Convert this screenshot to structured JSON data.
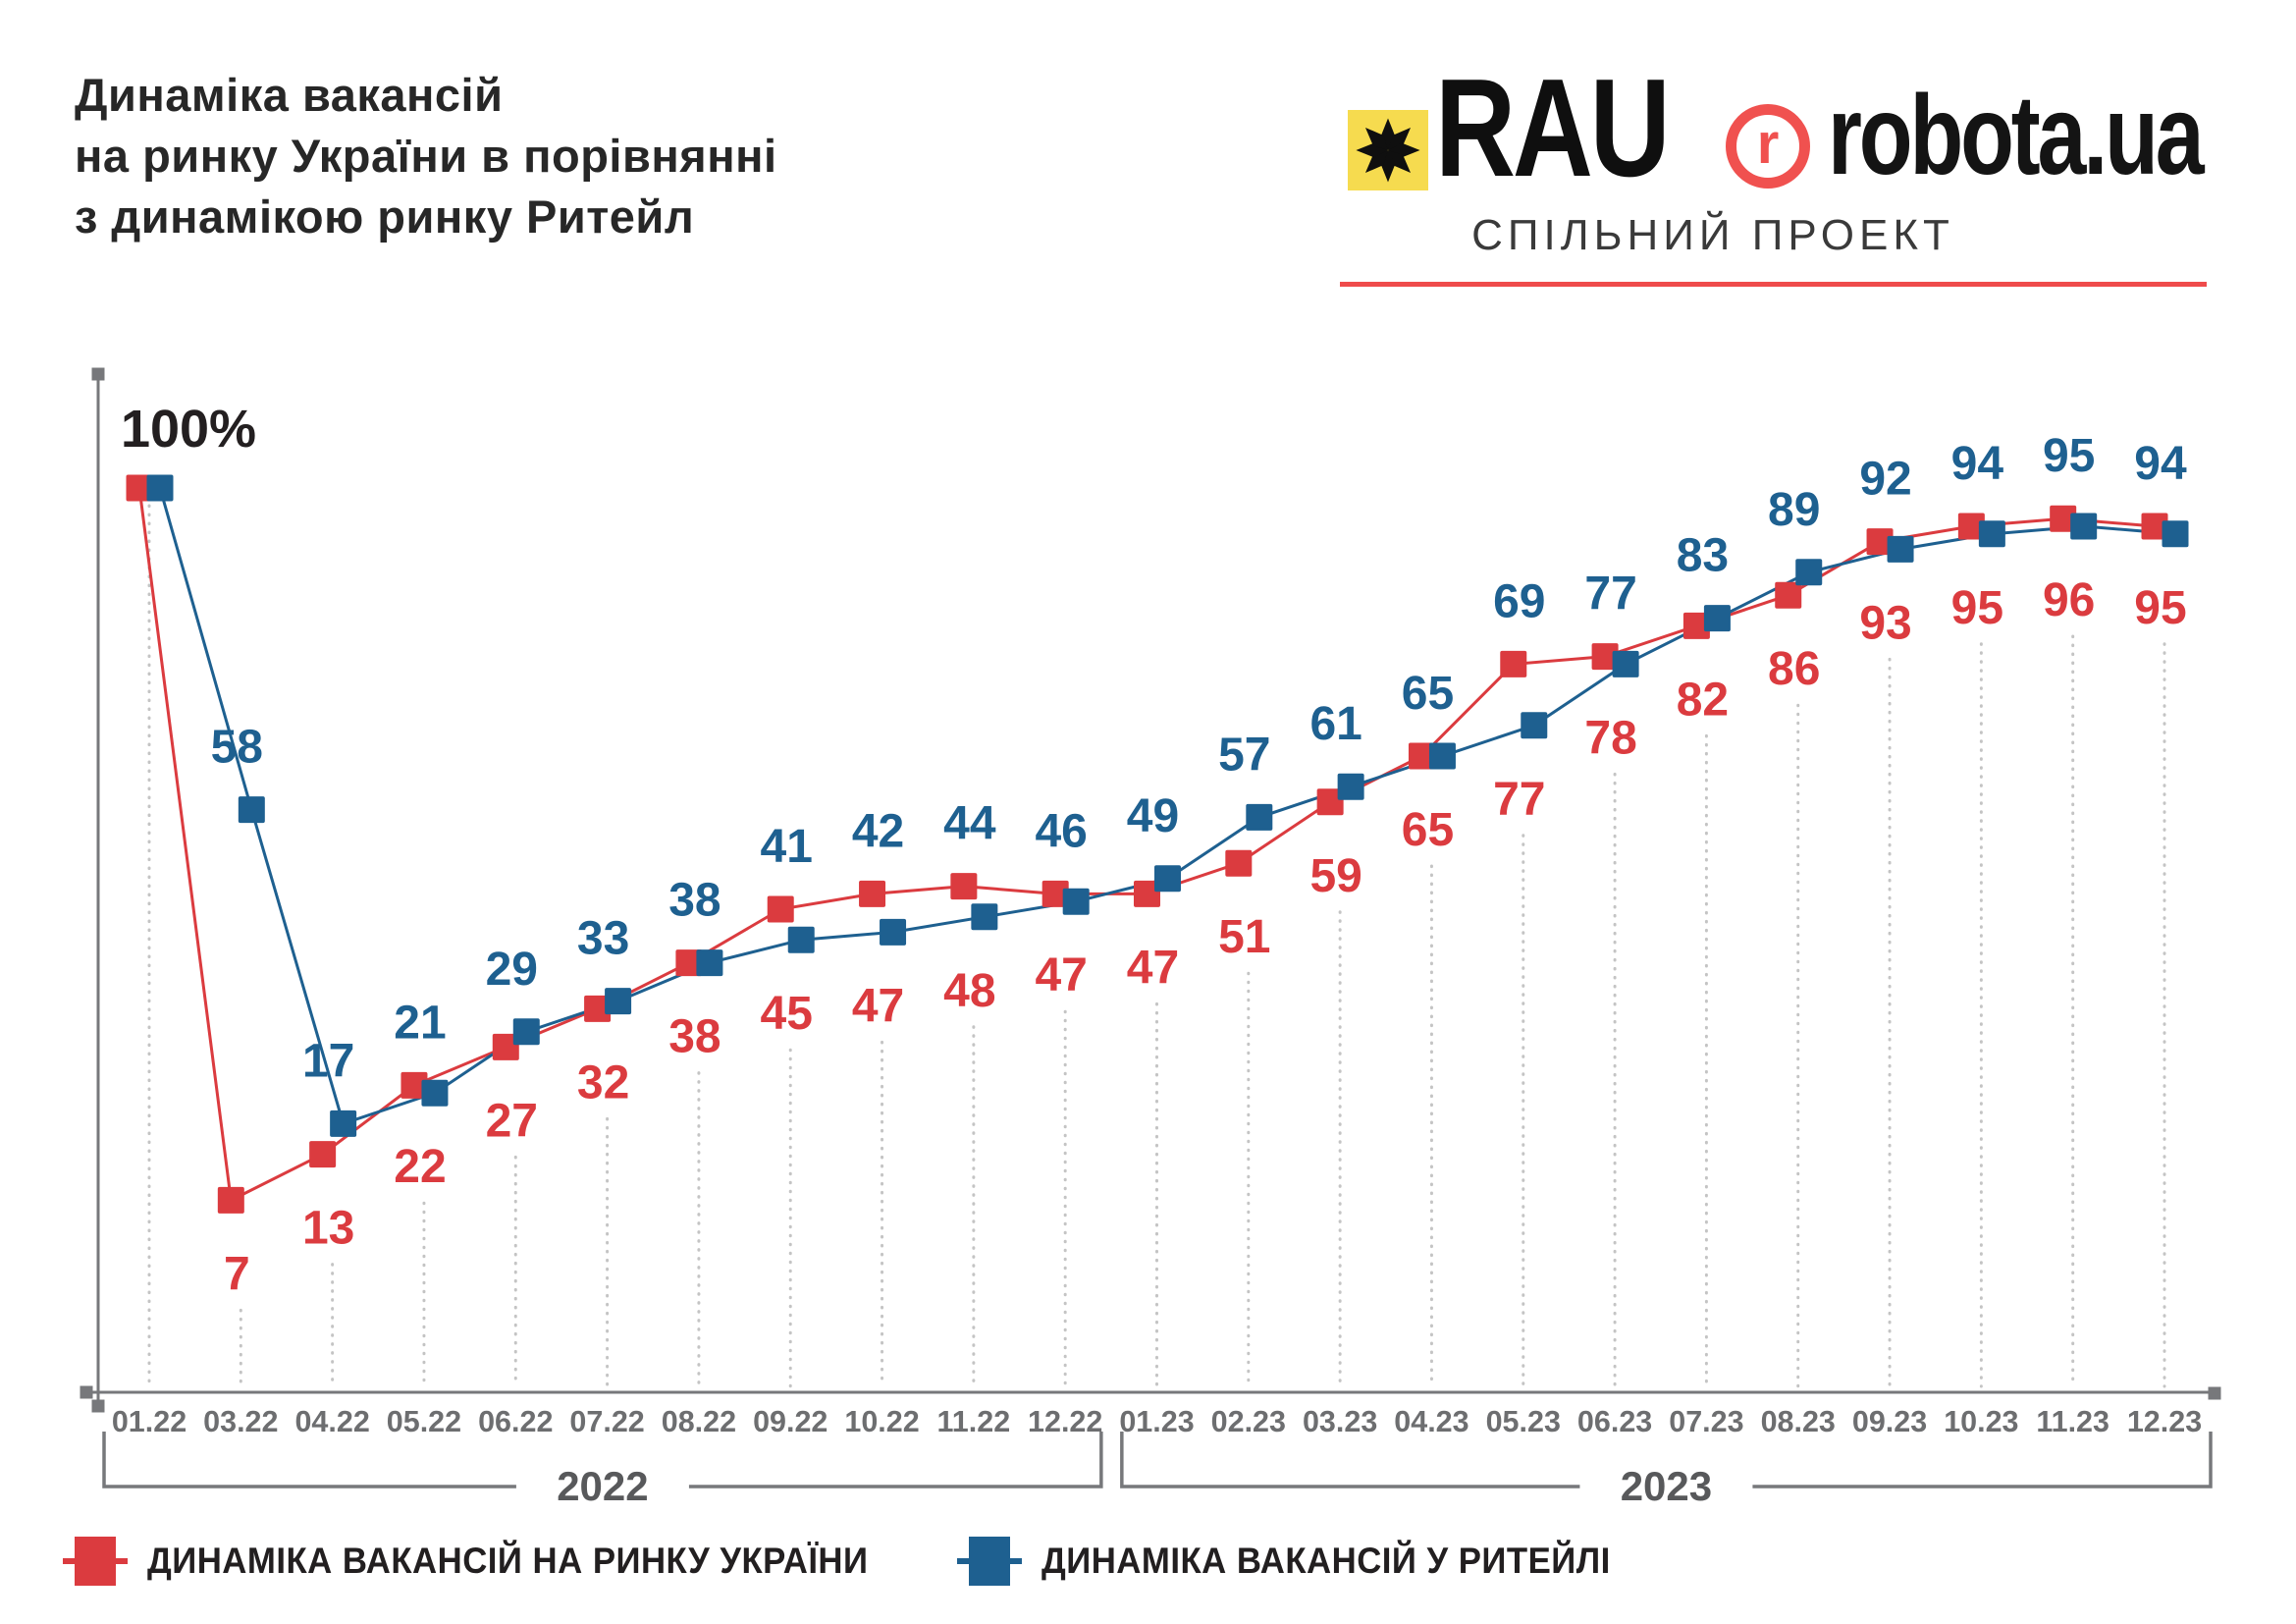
{
  "header": {
    "title_lines": [
      "Динаміка вакансій",
      "на ринку України в порівнянні",
      "з динамікою ринку Ритейл"
    ],
    "partners": {
      "rau_label": "RAU",
      "robota_r": "r",
      "robota_label": "robota.ua",
      "subtitle": "СПІЛЬНИЙ ПРОЕКТ"
    }
  },
  "colors": {
    "red": "#DB3B3F",
    "blue": "#1E6090",
    "axis": "#77787B",
    "tick": "#6D6E70",
    "year": "#58595B",
    "dotted": "#C4C4C4",
    "start_label_color": "#231F20",
    "logo_yellow": "#F6DB4F",
    "logo_red": "#F0514F"
  },
  "chart_data": {
    "type": "line",
    "title": "Динаміка вакансій на ринку України в порівнянні з динамікою ринку Ритейл",
    "categories": [
      "01.22",
      "03.22",
      "04.22",
      "05.22",
      "06.22",
      "07.22",
      "08.22",
      "09.22",
      "10.22",
      "11.22",
      "12.22",
      "01.23",
      "02.23",
      "03.23",
      "04.23",
      "05.23",
      "06.23",
      "07.23",
      "08.23",
      "09.23",
      "10.23",
      "11.23",
      "12.23"
    ],
    "series": [
      {
        "name": "ДИНАМІКА ВАКАНСІЙ НА РИНКУ УКРАЇНИ",
        "color_key": "red",
        "values": [
          100,
          7,
          13,
          22,
          27,
          32,
          38,
          45,
          47,
          48,
          47,
          47,
          51,
          59,
          65,
          77,
          78,
          82,
          86,
          93,
          95,
          96,
          95
        ]
      },
      {
        "name": "ДИНАМІКА ВАКАНСІЙ У РИТЕЙЛІ",
        "color_key": "blue",
        "values": [
          100,
          58,
          17,
          21,
          29,
          33,
          38,
          41,
          42,
          44,
          46,
          49,
          57,
          61,
          65,
          69,
          77,
          83,
          89,
          92,
          94,
          95,
          94
        ]
      }
    ],
    "start_label": "100%",
    "ylim": [
      0,
      100
    ],
    "grid": "dotted-vertical-droplines",
    "legend_position": "bottom",
    "year_groups": [
      {
        "label": "2022",
        "from": 0,
        "to": 10
      },
      {
        "label": "2023",
        "from": 11,
        "to": 22
      }
    ]
  }
}
